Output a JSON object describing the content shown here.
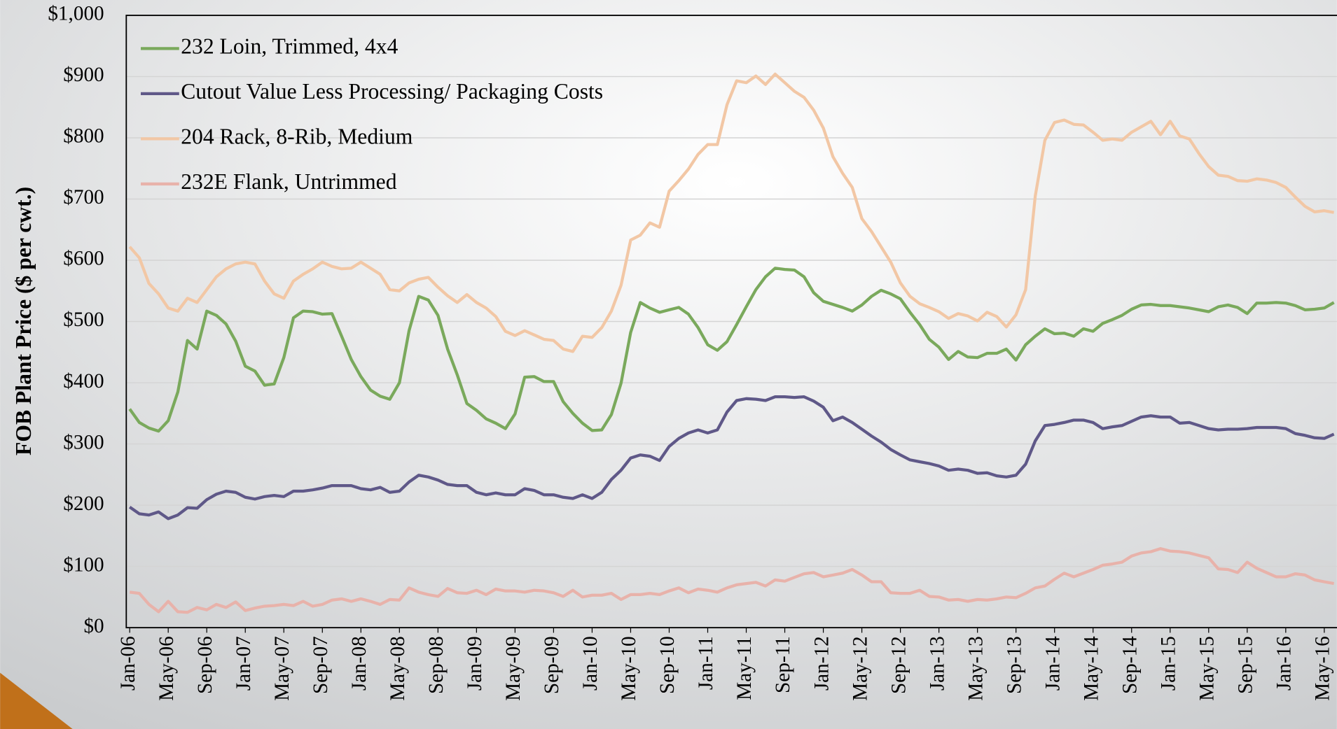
{
  "chart_data": {
    "type": "line",
    "y_label": "FOB Plant Price ($ per cwt.)",
    "categories": [
      "Jan-06",
      null,
      null,
      null,
      "May-06",
      null,
      null,
      null,
      "Sep-06",
      null,
      null,
      null,
      "Jan-07",
      null,
      null,
      null,
      "May-07",
      null,
      null,
      null,
      "Sep-07",
      null,
      null,
      null,
      "Jan-08",
      null,
      null,
      null,
      "May-08",
      null,
      null,
      null,
      "Sep-08",
      null,
      null,
      null,
      "Jan-09",
      null,
      null,
      null,
      "May-09",
      null,
      null,
      null,
      "Sep-09",
      null,
      null,
      null,
      "Jan-10",
      null,
      null,
      null,
      "May-10",
      null,
      null,
      null,
      "Sep-10",
      null,
      null,
      null,
      "Jan-11",
      null,
      null,
      null,
      "May-11",
      null,
      null,
      null,
      "Sep-11",
      null,
      null,
      null,
      "Jan-12",
      null,
      null,
      null,
      "May-12",
      null,
      null,
      null,
      "Sep-12",
      null,
      null,
      null,
      "Jan-13",
      null,
      null,
      null,
      "May-13",
      null,
      null,
      null,
      "Sep-13",
      null,
      null,
      null,
      "Jan-14",
      null,
      null,
      null,
      "May-14",
      null,
      null,
      null,
      "Sep-14",
      null,
      null,
      null,
      "Jan-15",
      null,
      null,
      null,
      "May-15",
      null,
      null,
      null,
      "Sep-15",
      null,
      null,
      null,
      "Jan-16",
      null,
      null,
      null,
      "May-16",
      null
    ],
    "series": [
      {
        "name": "232 Loin, Trimmed, 4x4",
        "color": "#7aa95c",
        "values": [
          357,
          335,
          326,
          321,
          338,
          385,
          469,
          455,
          517,
          510,
          496,
          468,
          427,
          419,
          396,
          398,
          441,
          506,
          517,
          516,
          512,
          513,
          476,
          438,
          410,
          388,
          378,
          373,
          400,
          485,
          541,
          535,
          510,
          455,
          413,
          366,
          355,
          341,
          334,
          325,
          349,
          409,
          410,
          402,
          402,
          369,
          350,
          334,
          322,
          323,
          348,
          399,
          482,
          531,
          522,
          515,
          519,
          523,
          512,
          490,
          462,
          453,
          467,
          495,
          524,
          552,
          573,
          587,
          585,
          584,
          573,
          547,
          533,
          528,
          523,
          517,
          527,
          541,
          551,
          545,
          537,
          515,
          495,
          471,
          458,
          438,
          451,
          442,
          441,
          448,
          448,
          455,
          437,
          462,
          476,
          488,
          480,
          481,
          476,
          488,
          484,
          497,
          503,
          510,
          520,
          527,
          528,
          526,
          526,
          524,
          522,
          519,
          516,
          524,
          527,
          523,
          513,
          530,
          530,
          531,
          530,
          526,
          519,
          520,
          522,
          531
        ]
      },
      {
        "name": "Cutout Value Less Processing/ Packaging Costs",
        "color": "#5f5888",
        "values": [
          197,
          186,
          184,
          189,
          178,
          184,
          196,
          195,
          209,
          218,
          223,
          221,
          213,
          210,
          214,
          216,
          214,
          223,
          223,
          225,
          228,
          232,
          232,
          232,
          227,
          225,
          229,
          221,
          223,
          238,
          249,
          246,
          241,
          234,
          232,
          232,
          221,
          217,
          220,
          217,
          217,
          227,
          224,
          217,
          217,
          213,
          211,
          217,
          211,
          221,
          242,
          257,
          277,
          282,
          280,
          273,
          296,
          309,
          318,
          323,
          318,
          323,
          352,
          371,
          374,
          373,
          371,
          377,
          377,
          376,
          377,
          370,
          360,
          338,
          344,
          335,
          324,
          313,
          303,
          291,
          282,
          274,
          271,
          268,
          264,
          257,
          259,
          257,
          252,
          253,
          248,
          246,
          249,
          267,
          305,
          330,
          332,
          335,
          339,
          339,
          335,
          325,
          328,
          330,
          337,
          344,
          346,
          344,
          344,
          334,
          335,
          330,
          325,
          323,
          324,
          324,
          325,
          327,
          327,
          327,
          325,
          317,
          314,
          310,
          309,
          316
        ]
      },
      {
        "name": "204 Rack, 8-Rib, Medium",
        "color": "#f2c7a5",
        "values": [
          622,
          604,
          562,
          545,
          522,
          517,
          538,
          531,
          552,
          573,
          586,
          594,
          597,
          594,
          566,
          545,
          538,
          566,
          577,
          586,
          597,
          590,
          586,
          587,
          597,
          587,
          577,
          552,
          550,
          563,
          569,
          572,
          556,
          542,
          531,
          544,
          531,
          522,
          508,
          484,
          477,
          485,
          478,
          471,
          469,
          455,
          451,
          476,
          474,
          490,
          517,
          559,
          633,
          641,
          661,
          654,
          713,
          730,
          749,
          773,
          789,
          789,
          854,
          893,
          890,
          901,
          887,
          904,
          890,
          876,
          866,
          845,
          816,
          769,
          742,
          719,
          668,
          647,
          622,
          597,
          563,
          541,
          529,
          523,
          516,
          505,
          513,
          509,
          501,
          515,
          508,
          491,
          511,
          552,
          705,
          796,
          825,
          829,
          822,
          821,
          809,
          796,
          798,
          796,
          809,
          818,
          827,
          805,
          827,
          803,
          798,
          774,
          753,
          739,
          737,
          730,
          729,
          733,
          731,
          727,
          719,
          703,
          688,
          679,
          681,
          678
        ]
      },
      {
        "name": "232E Flank, Untrimmed",
        "color": "#e8b2aa",
        "values": [
          58,
          56,
          38,
          26,
          43,
          26,
          25,
          33,
          29,
          38,
          33,
          42,
          28,
          32,
          35,
          36,
          38,
          36,
          43,
          35,
          38,
          45,
          47,
          43,
          47,
          43,
          38,
          46,
          45,
          65,
          58,
          54,
          51,
          64,
          57,
          56,
          61,
          54,
          63,
          60,
          60,
          58,
          61,
          60,
          57,
          51,
          61,
          50,
          53,
          53,
          56,
          46,
          54,
          54,
          56,
          54,
          60,
          65,
          57,
          63,
          61,
          58,
          65,
          70,
          72,
          74,
          68,
          78,
          76,
          82,
          88,
          90,
          83,
          86,
          89,
          95,
          86,
          75,
          75,
          57,
          56,
          56,
          61,
          51,
          50,
          45,
          46,
          43,
          46,
          45,
          47,
          50,
          49,
          56,
          65,
          68,
          79,
          89,
          83,
          89,
          95,
          102,
          104,
          107,
          117,
          122,
          124,
          129,
          125,
          124,
          122,
          118,
          114,
          96,
          95,
          90,
          107,
          97,
          90,
          83,
          83,
          88,
          86,
          78,
          75,
          72
        ]
      }
    ],
    "ylim": [
      0,
      1000
    ],
    "yticks": [
      {
        "value": 0,
        "label": "$0"
      },
      {
        "value": 100,
        "label": "$100"
      },
      {
        "value": 200,
        "label": "$200"
      },
      {
        "value": 300,
        "label": "$300"
      },
      {
        "value": 400,
        "label": "$400"
      },
      {
        "value": 500,
        "label": "$500"
      },
      {
        "value": 600,
        "label": "$600"
      },
      {
        "value": 700,
        "label": "$700"
      },
      {
        "value": 800,
        "label": "$800"
      },
      {
        "value": 900,
        "label": "$900"
      },
      {
        "value": 1000,
        "label": "$1,000"
      }
    ],
    "grid": true,
    "legend": "upper-left"
  }
}
